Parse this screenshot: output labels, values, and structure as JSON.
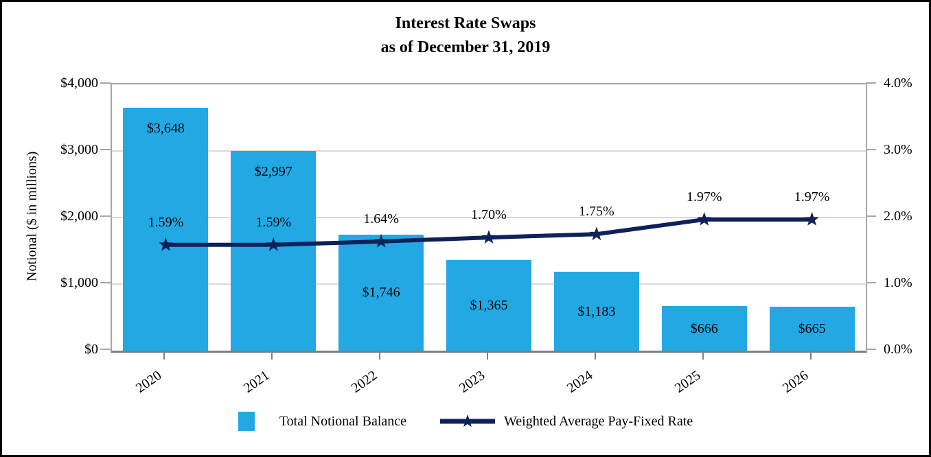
{
  "title": {
    "line1": "Interest Rate Swaps",
    "line2": "as of December 31, 2019"
  },
  "legend": {
    "bar_label": "Total Notional Balance",
    "line_label": "Weighted Average Pay-Fixed Rate"
  },
  "colors": {
    "bar": "#22a9e4",
    "line": "#0e2259",
    "gridline": "#d9d9d9",
    "axis_frame": "#a6a6a6",
    "axis_bottom": "#808080",
    "text": "#000000"
  },
  "chart_data": {
    "type": "combo-bar-line",
    "title": "Interest Rate Swaps as of December 31, 2019",
    "categories": [
      "2020",
      "2021",
      "2022",
      "2023",
      "2024",
      "2025",
      "2026"
    ],
    "series": [
      {
        "name": "Total Notional Balance",
        "type": "bar",
        "axis": "left",
        "values": [
          3648,
          2997,
          1746,
          1365,
          1183,
          666,
          665
        ],
        "labels": [
          "$3,648",
          "$2,997",
          "$1,746",
          "$1,365",
          "$1,183",
          "$666",
          "$665"
        ]
      },
      {
        "name": "Weighted Average Pay-Fixed Rate",
        "type": "line",
        "axis": "right",
        "marker": "star",
        "values": [
          1.59,
          1.59,
          1.64,
          1.7,
          1.75,
          1.97,
          1.97
        ],
        "labels": [
          "1.59%",
          "1.59%",
          "1.64%",
          "1.70%",
          "1.75%",
          "1.97%",
          "1.97%"
        ]
      }
    ],
    "left_axis": {
      "label": "Notional ($ in millions)",
      "range": [
        0,
        4000
      ],
      "tick_step": 1000,
      "tick_labels": [
        "$4,000",
        "$3,000",
        "$2,000",
        "$1,000",
        "$0"
      ]
    },
    "right_axis": {
      "range": [
        0,
        4
      ],
      "tick_step": 1,
      "tick_labels": [
        "4.0%",
        "3.0%",
        "2.0%",
        "1.0%",
        "0.0%"
      ]
    },
    "grid": true,
    "legend_position": "bottom"
  }
}
